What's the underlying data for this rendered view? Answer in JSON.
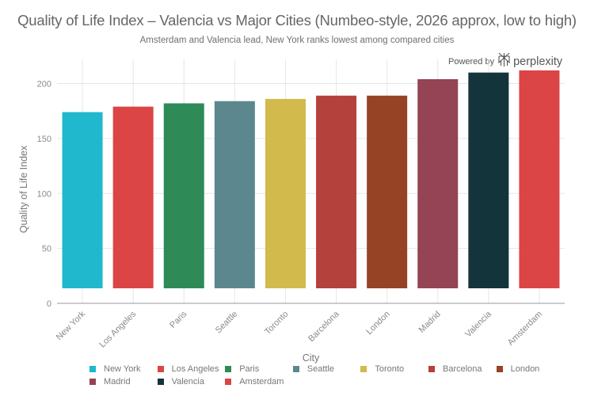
{
  "title": "Quality of Life Index – Valencia vs Major Cities (Numbeo-style, 2026 approx, low to high)",
  "subtitle": "Amsterdam and Valencia lead, New York ranks lowest among compared cities",
  "branding": {
    "powered_by": "Powered by",
    "brand": "perplexity",
    "icon": "perplexity-logo-icon"
  },
  "chart_data": {
    "type": "bar",
    "title": "Quality of Life Index – Valencia vs Major Cities (Numbeo-style, 2026 approx, low to high)",
    "subtitle": "Amsterdam and Valencia lead, New York ranks lowest among compared cities",
    "xlabel": "City",
    "ylabel": "Quality of Life Index",
    "ylim": [
      0,
      215
    ],
    "yticks": [
      0,
      50,
      100,
      150,
      200
    ],
    "grid": true,
    "legend_title": "City",
    "legend_position": "bottom",
    "categories": [
      "New York",
      "Los Angeles",
      "Paris",
      "Seattle",
      "Toronto",
      "Barcelona",
      "London",
      "Madrid",
      "Valencia",
      "Amsterdam"
    ],
    "values": [
      174,
      179,
      182,
      184,
      186,
      189,
      189,
      204,
      210,
      212
    ],
    "colors": [
      "#1fb8cd",
      "#db4545",
      "#2e8b57",
      "#5d878f",
      "#d2ba4c",
      "#b4413c",
      "#964325",
      "#944454",
      "#13343b",
      "#db4545"
    ]
  }
}
